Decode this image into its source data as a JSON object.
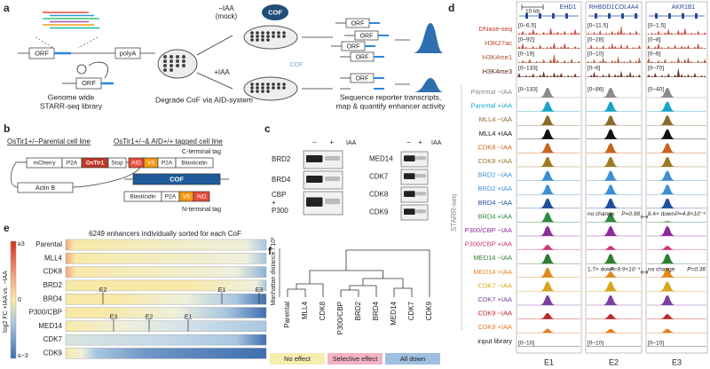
{
  "panel_a": {
    "letter": "a",
    "polya": "polyA",
    "orf_labels": [
      "ORF",
      "ORF",
      "ORF",
      "ORF",
      "ORF",
      "ORF",
      "ORF"
    ],
    "library_caption": [
      "Genome wide",
      "STARR-seq library"
    ],
    "mock_label": [
      "−IAA",
      "(mock)"
    ],
    "cof_badge": "COF",
    "iaa_label": "+IAA",
    "cof_degraded": "COF",
    "degrade_caption": "Degrade CoF via AID-system",
    "sequence_caption": [
      "Sequence reporter transcripts,",
      "map & quantify enhancer activity"
    ]
  },
  "panel_b": {
    "letter": "b",
    "parental_title": "OsTir1+/−Parental cell line",
    "parental_construct": [
      "mCherry",
      "P2A",
      "OsTir1",
      "Stop"
    ],
    "actin": "Actin B",
    "tagged_title": "OsTir1+/−& AID+/+ tagged cell line",
    "c_terminal_label": "C-terminal tag",
    "c_terminal_construct": [
      "AID",
      "V5",
      "P2A",
      "Blasticidin"
    ],
    "cof": "COF",
    "n_terminal_construct": [
      "Blasticidin",
      "P2A",
      "V5",
      "AID"
    ],
    "n_terminal_label": "N-terminal tag"
  },
  "panel_c": {
    "letter": "c",
    "blots": [
      {
        "minus": "−",
        "plus": "+",
        "iaa": "IAA",
        "proteins": [
          [
            "BRD2"
          ],
          [
            "BRD4"
          ],
          [
            "CBP",
            "+",
            "P300"
          ]
        ]
      },
      {
        "minus": "−",
        "plus": "+",
        "iaa": "IAA",
        "proteins": [
          [
            "MED14"
          ],
          [
            "CDK7"
          ],
          [
            "CDK8"
          ],
          [
            "CDK9"
          ]
        ]
      }
    ]
  },
  "panel_d": {
    "letter": "d",
    "scale_bar": "10 kb",
    "columns": [
      {
        "genes": [
          "EHD1"
        ],
        "label": "E1"
      },
      {
        "genes": [
          "RHBDD1",
          "COL4A4"
        ],
        "label": "E2"
      },
      {
        "genes": [
          "AKR1B1"
        ],
        "label": "E3"
      }
    ],
    "chromatin_tracks": [
      {
        "name": "DNase-seq",
        "color": "#c0392b",
        "ranges": [
          "[0–6.5]",
          "[0–11.5]",
          "[0–1.5]"
        ]
      },
      {
        "name": "H3K27ac",
        "color": "#b5442c",
        "ranges": [
          "[0–92]",
          "[0–28]",
          "[0–8]"
        ]
      },
      {
        "name": "H3K4me1",
        "color": "#a8502a",
        "ranges": [
          "[0–19]",
          "[0–10]",
          "[0–6]"
        ]
      },
      {
        "name": "H3K4me3",
        "color": "#5a1a14",
        "ranges": [
          "[0–133]",
          "[0–6]",
          "[0–70]"
        ]
      }
    ],
    "starr_label": "STARR-seq",
    "starr_ranges": [
      "[0–133]",
      "[0–86]",
      "[0–40]"
    ],
    "starr_tracks": [
      {
        "name": "Parental −IAA",
        "color": "#8c8c8c"
      },
      {
        "name": "Parental +IAA",
        "color": "#1aa3c9"
      },
      {
        "name": "MLL4 −IAA",
        "color": "#8b6a2b"
      },
      {
        "name": "MLL4 +IAA",
        "color": "#111111"
      },
      {
        "name": "CDK8 −IAA",
        "color": "#c8641e"
      },
      {
        "name": "CDK8 +IAA",
        "color": "#9b7a20"
      },
      {
        "name": "BRD2 −IAA",
        "color": "#3d8fd1"
      },
      {
        "name": "BRD2 +IAA",
        "color": "#3d8fd1"
      },
      {
        "name": "BRD4 −IAA",
        "color": "#1f4e9c"
      },
      {
        "name": "BRD4 +IAA",
        "color": "#2e8b3e"
      },
      {
        "name": "P300/CBP −IAA",
        "color": "#8e2b9e"
      },
      {
        "name": "P300/CBP +IAA",
        "color": "#d6336c"
      },
      {
        "name": "MED14 −IAA",
        "color": "#2f7d32"
      },
      {
        "name": "MED14 +IAA",
        "color": "#e08a1e"
      },
      {
        "name": "CDK7 −IAA",
        "color": "#d9a51c"
      },
      {
        "name": "CDK7 +IAA",
        "color": "#7b3fa0"
      },
      {
        "name": "CDK9 −IAA",
        "color": "#c0282a"
      },
      {
        "name": "CDK9 +IAA",
        "color": "#e67e22"
      }
    ],
    "input_track": {
      "name": "input library",
      "ranges": [
        "[0–10]",
        "[0–10]",
        "[0–10]"
      ]
    },
    "brd4_annotations": [
      {
        "text": "no change",
        "p": "P=0.98"
      },
      {
        "text": "8.4× down",
        "p": "P=4.8×10⁻⁹"
      }
    ],
    "med14_annotations": [
      {
        "text": "1.7× down",
        "p": "P=9.9×10⁻³"
      },
      {
        "text": "no change",
        "p": "P=0.36"
      }
    ]
  },
  "panel_e": {
    "letter": "e",
    "title": "6249 enhancers individually sorted for each CoF",
    "rows": [
      "Parental",
      "MLL4",
      "CDK8",
      "BRD2",
      "BRD4",
      "P300/CBP",
      "MED14",
      "CDK7",
      "CDK9"
    ],
    "colorbar_label": "log2 FC +IAA vs. −IAA",
    "colorbar_ticks": [
      "≥3",
      "0",
      "≤−3"
    ],
    "brd4_markers": [
      "E2",
      "E1",
      "E3"
    ],
    "med14_markers": [
      "E3",
      "E2",
      "E1"
    ]
  },
  "panel_f": {
    "letter": "f",
    "y_label": "Manhattan distance / 10³",
    "leaves": [
      "Parental",
      "MLL4",
      "CDK8",
      "P300/CBP",
      "BRD2",
      "BRD4",
      "MED14",
      "CDK7",
      "CDK9"
    ],
    "legend": [
      "No effect",
      "Selective effect",
      "All down"
    ]
  }
}
